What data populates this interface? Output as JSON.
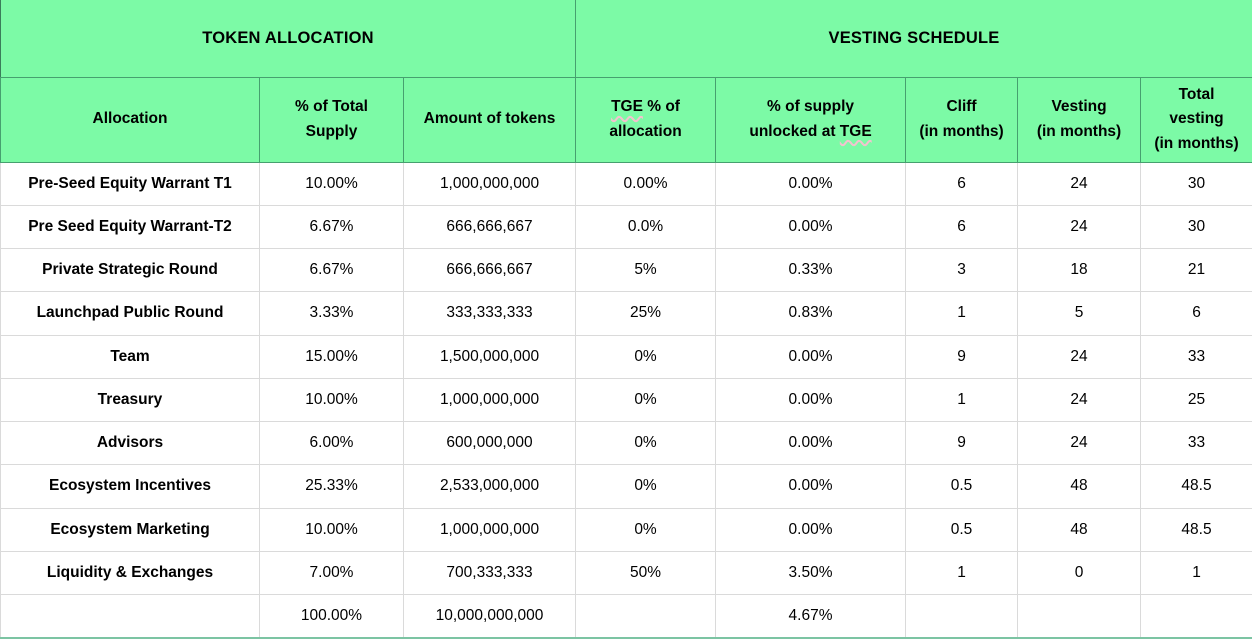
{
  "colors": {
    "header_bg": "#7cfaa6",
    "header_border": "#46a06f",
    "body_border": "#dadada",
    "bottom_border": "#7cc4a3",
    "text": "#000000",
    "spellcheck_underline": "#f3c3ce"
  },
  "table": {
    "group_headers": [
      {
        "label": "TOKEN ALLOCATION",
        "colspan": 3
      },
      {
        "label": "VESTING SCHEDULE",
        "colspan": 5
      }
    ],
    "column_headers": [
      "Allocation",
      "% of Total\nSupply",
      "Amount of tokens",
      "TGE % of\nallocation",
      "% of supply\nunlocked at TGE",
      "Cliff\n(in months)",
      "Vesting\n(in months)",
      "Total\nvesting\n(in months)"
    ],
    "spellchecked_word": "TGE",
    "rows": [
      [
        "Pre-Seed Equity Warrant T1",
        "10.00%",
        "1,000,000,000",
        "0.00%",
        "0.00%",
        "6",
        "24",
        "30"
      ],
      [
        "Pre Seed Equity Warrant-T2",
        "6.67%",
        "666,666,667",
        "0.0%",
        "0.00%",
        "6",
        "24",
        "30"
      ],
      [
        "Private Strategic Round",
        "6.67%",
        "666,666,667",
        "5%",
        "0.33%",
        "3",
        "18",
        "21"
      ],
      [
        "Launchpad Public Round",
        "3.33%",
        "333,333,333",
        "25%",
        "0.83%",
        "1",
        "5",
        "6"
      ],
      [
        "Team",
        "15.00%",
        "1,500,000,000",
        "0%",
        "0.00%",
        "9",
        "24",
        "33"
      ],
      [
        "Treasury",
        "10.00%",
        "1,000,000,000",
        "0%",
        "0.00%",
        "1",
        "24",
        "25"
      ],
      [
        "Advisors",
        "6.00%",
        "600,000,000",
        "0%",
        "0.00%",
        "9",
        "24",
        "33"
      ],
      [
        "Ecosystem Incentives",
        "25.33%",
        "2,533,000,000",
        "0%",
        "0.00%",
        "0.5",
        "48",
        "48.5"
      ],
      [
        "Ecosystem Marketing",
        "10.00%",
        "1,000,000,000",
        "0%",
        "0.00%",
        "0.5",
        "48",
        "48.5"
      ],
      [
        "Liquidity & Exchanges",
        "7.00%",
        "700,333,333",
        "50%",
        "3.50%",
        "1",
        "0",
        "1"
      ]
    ],
    "total_row": [
      "",
      "100.00%",
      "10,000,000,000",
      "",
      "4.67%",
      "",
      "",
      ""
    ]
  }
}
